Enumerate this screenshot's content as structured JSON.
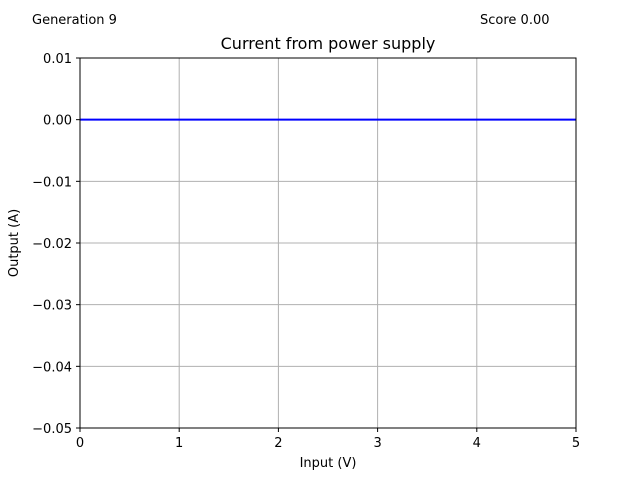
{
  "status": {
    "generation_label": "Generation 9",
    "score_label": "Score 0.00"
  },
  "chart_data": {
    "type": "line",
    "title": "Current from power supply",
    "xlabel": "Input (V)",
    "ylabel": "Output (A)",
    "xlim": [
      0,
      5
    ],
    "ylim": [
      -0.05,
      0.01
    ],
    "xticks": [
      0,
      1,
      2,
      3,
      4,
      5
    ],
    "xtick_labels": [
      "0",
      "1",
      "2",
      "3",
      "4",
      "5"
    ],
    "yticks": [
      -0.05,
      -0.04,
      -0.03,
      -0.02,
      -0.01,
      0.0,
      0.01
    ],
    "ytick_labels": [
      "−0.05",
      "−0.04",
      "−0.03",
      "−0.02",
      "−0.01",
      "0.00",
      "0.01"
    ],
    "grid": true,
    "series": [
      {
        "x": [
          0,
          5
        ],
        "y": [
          0,
          0
        ],
        "color": "#0000ff"
      }
    ]
  }
}
